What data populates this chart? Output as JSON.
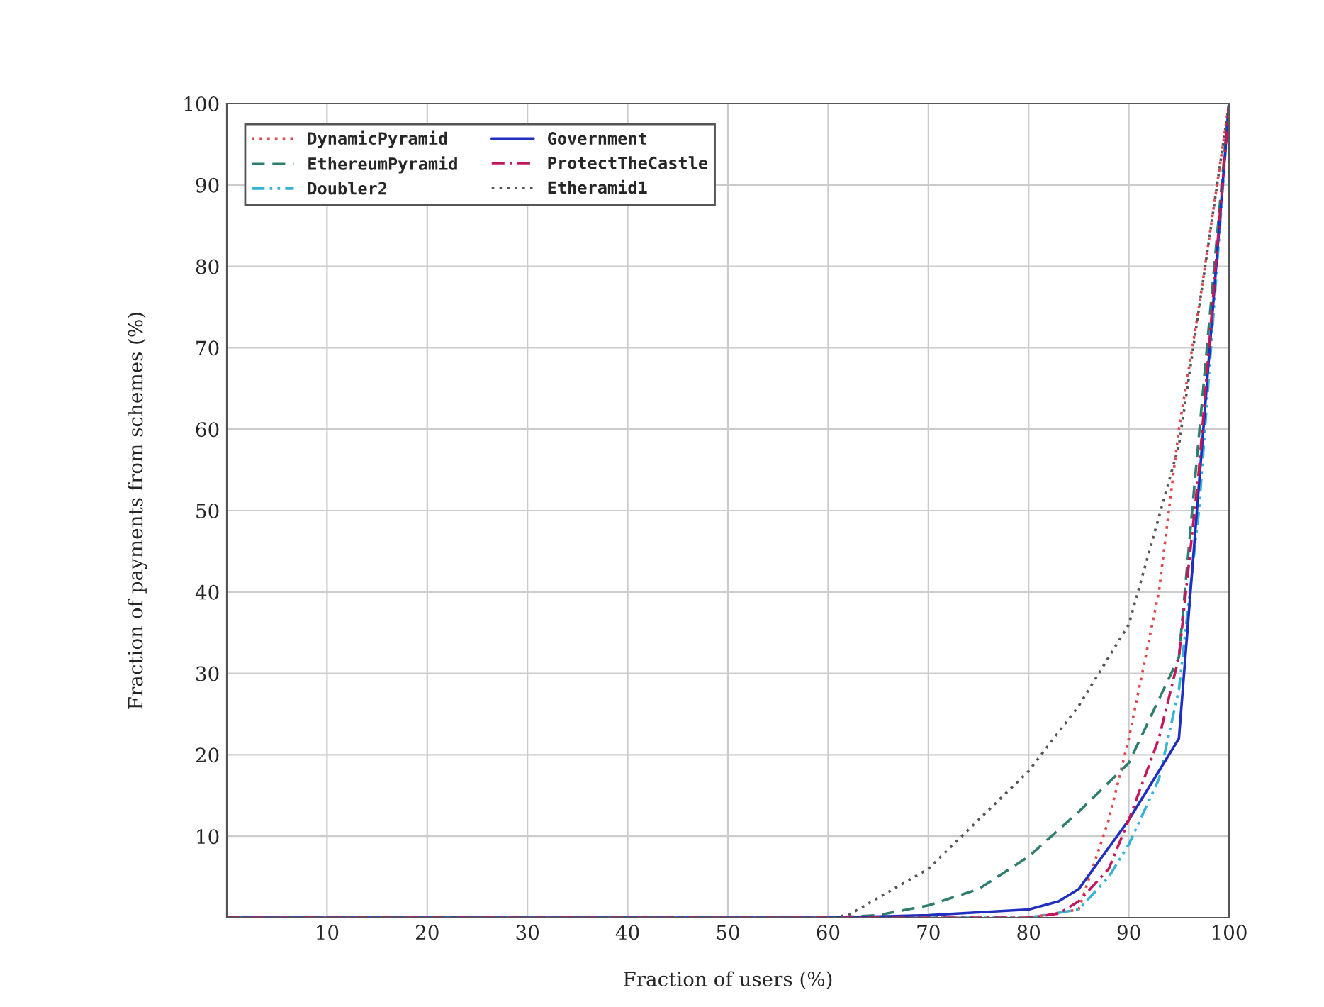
{
  "chart_data": {
    "type": "line",
    "xlabel": "Fraction of users (%)",
    "ylabel": "Fraction of payments from schemes (%)",
    "xlim": [
      0,
      100
    ],
    "ylim": [
      0,
      100
    ],
    "xticks": [
      10,
      20,
      30,
      40,
      50,
      60,
      70,
      80,
      90,
      100
    ],
    "yticks": [
      10,
      20,
      30,
      40,
      50,
      60,
      70,
      80,
      90,
      100
    ],
    "grid": true,
    "legend": "top left",
    "marker": "none",
    "series": [
      {
        "name": "DynamicPyramid",
        "color": "#e0474c",
        "line_style": "dotted",
        "x": [
          0,
          60,
          80,
          85,
          88,
          90,
          93,
          95,
          97,
          100
        ],
        "values": [
          0,
          0,
          0,
          1,
          12,
          22,
          40,
          60,
          75,
          100
        ]
      },
      {
        "name": "EthereumPyramid",
        "color": "#2e7d6e",
        "line_style": "dashed",
        "x": [
          0,
          60,
          65,
          70,
          75,
          80,
          85,
          90,
          95,
          100
        ],
        "values": [
          0,
          0,
          0.3,
          1.5,
          3.5,
          7.5,
          13,
          19,
          32,
          100
        ]
      },
      {
        "name": "Doubler2",
        "color": "#34b3d6",
        "line_style": "dashdotdotted",
        "x": [
          0,
          60,
          80,
          85,
          88,
          90,
          93,
          95,
          97,
          100
        ],
        "values": [
          0,
          0,
          0,
          1,
          5,
          9,
          17,
          28,
          50,
          100
        ]
      },
      {
        "name": "Government",
        "color": "#1f2fbf",
        "line_style": "solid",
        "x": [
          0,
          60,
          70,
          80,
          83,
          85,
          90,
          95,
          100
        ],
        "values": [
          0,
          0,
          0.3,
          1,
          2,
          3.5,
          12,
          22,
          100
        ]
      },
      {
        "name": "ProtectTheCastle",
        "color": "#c2185b",
        "line_style": "dashdot",
        "x": [
          0,
          60,
          80,
          83,
          85,
          88,
          90,
          93,
          95,
          97,
          100
        ],
        "values": [
          0,
          0,
          0,
          0.5,
          2,
          6,
          12,
          22,
          32,
          55,
          100
        ]
      },
      {
        "name": "Etheramid1",
        "color": "#555555",
        "line_style": "dotted",
        "x": [
          0,
          60,
          62,
          70,
          80,
          85,
          90,
          95,
          100
        ],
        "values": [
          0,
          0,
          0.3,
          6,
          18,
          26,
          36,
          58,
          100
        ]
      }
    ]
  }
}
